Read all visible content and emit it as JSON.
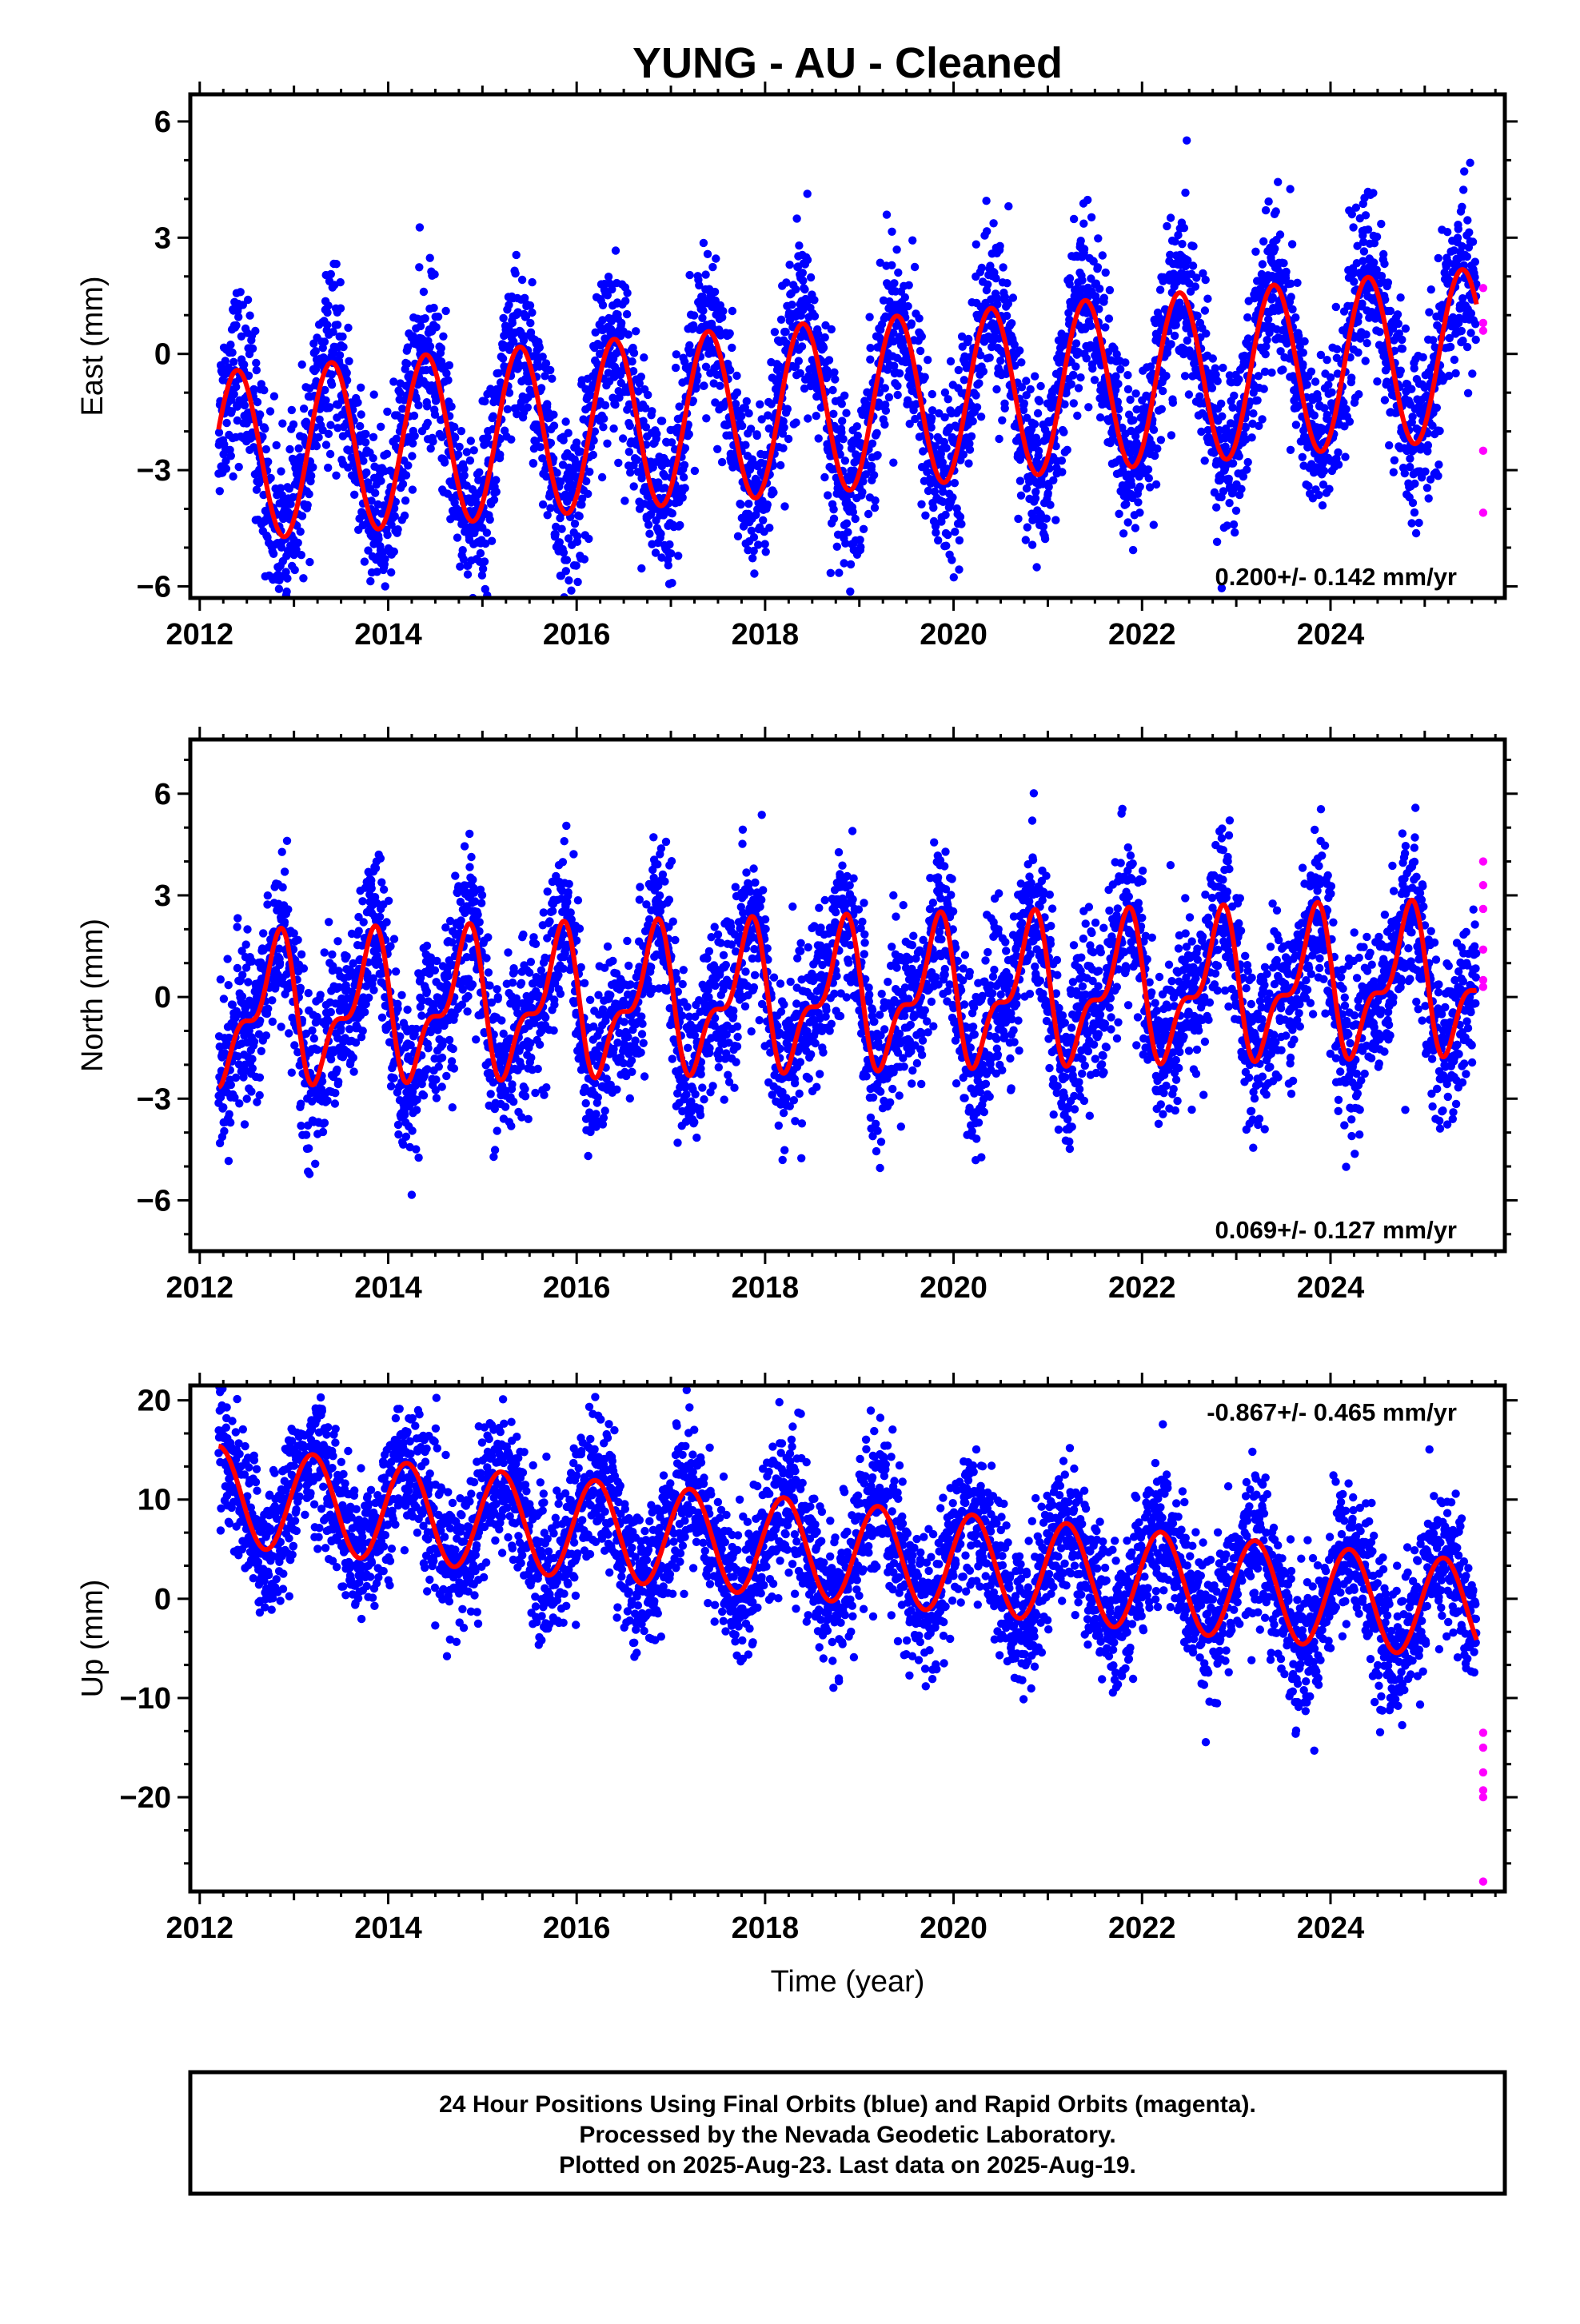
{
  "title": "YUNG  - AU - Cleaned",
  "footer": {
    "line1": "24 Hour Positions Using Final Orbits (blue) and Rapid Orbits (magenta).",
    "line2": "Processed by the Nevada Geodetic Laboratory.",
    "line3": "Plotted on 2025-Aug-23. Last data on 2025-Aug-19."
  },
  "colors": {
    "final": "#0000ff",
    "rapid": "#ff00ff",
    "model": "#ff0000",
    "frame": "#000000"
  },
  "chart_data": [
    {
      "type": "scatter",
      "ylabel": "East (mm)",
      "xlabel": "",
      "rate_text": "0.200+/- 0.142 mm/yr",
      "rate_position": "bottom-right",
      "xlim": [
        2011.9,
        2025.85
      ],
      "ylim": [
        -6.3,
        6.7
      ],
      "xticks": [
        2012,
        2014,
        2016,
        2018,
        2020,
        2022,
        2024
      ],
      "yticks": [
        -6,
        -3,
        0,
        3,
        6
      ],
      "data_start": 2012.2,
      "data_end": 2025.55,
      "series": [
        {
          "model": {
            "offset": -1.3,
            "trend": 0.2,
            "annual_amp": 2.2,
            "annual_phase": 2.5,
            "semiannual_amp": 0.0,
            "semiannual_phase": 0.0
          },
          "noise": 1.1
        }
      ],
      "rapid_points": [
        [
          2025.62,
          1.7
        ],
        [
          2025.62,
          0.8
        ],
        [
          2025.62,
          0.6
        ],
        [
          2025.62,
          -2.5
        ],
        [
          2025.62,
          -4.1
        ]
      ]
    },
    {
      "type": "scatter",
      "ylabel": "North (mm)",
      "xlabel": "",
      "rate_text": "0.069+/- 0.127 mm/yr",
      "rate_position": "bottom-right",
      "xlim": [
        2011.9,
        2025.85
      ],
      "ylim": [
        -7.5,
        7.6
      ],
      "xticks": [
        2012,
        2014,
        2016,
        2018,
        2020,
        2022,
        2024
      ],
      "yticks": [
        -6,
        -3,
        0,
        3,
        6
      ],
      "data_start": 2012.2,
      "data_end": 2025.55,
      "series": [
        {
          "model": {
            "offset": 0.0,
            "trend": 0.069,
            "annual_amp": 1.8,
            "annual_phase": 5.0,
            "semiannual_amp": 0.9,
            "semiannual_phase": 5.0
          },
          "noise": 1.2
        }
      ],
      "rapid_points": [
        [
          2025.62,
          4.0
        ],
        [
          2025.62,
          3.3
        ],
        [
          2025.62,
          2.6
        ],
        [
          2025.62,
          1.4
        ],
        [
          2025.62,
          0.5
        ],
        [
          2025.62,
          0.3
        ]
      ]
    },
    {
      "type": "scatter",
      "ylabel": "Up (mm)",
      "xlabel": "Time (year)",
      "rate_text": "-0.867+/- 0.465 mm/yr",
      "rate_position": "top-right",
      "xlim": [
        2011.9,
        2025.85
      ],
      "ylim": [
        -29.5,
        21.5
      ],
      "xticks": [
        2012,
        2014,
        2016,
        2018,
        2020,
        2022,
        2024
      ],
      "yticks": [
        -20,
        -10,
        0,
        10,
        20
      ],
      "data_start": 2012.2,
      "data_end": 2025.55,
      "series": [
        {
          "model": {
            "offset": 4.5,
            "trend": -0.867,
            "annual_amp": 5.0,
            "annual_phase": 1.25,
            "semiannual_amp": 0.0,
            "semiannual_phase": 0.0
          },
          "noise": 3.6
        }
      ],
      "rapid_points": [
        [
          2025.62,
          -13.5
        ],
        [
          2025.62,
          -15.0
        ],
        [
          2025.62,
          -17.5
        ],
        [
          2025.62,
          -19.3
        ],
        [
          2025.62,
          -20.0
        ],
        [
          2025.62,
          -28.5
        ]
      ]
    }
  ]
}
